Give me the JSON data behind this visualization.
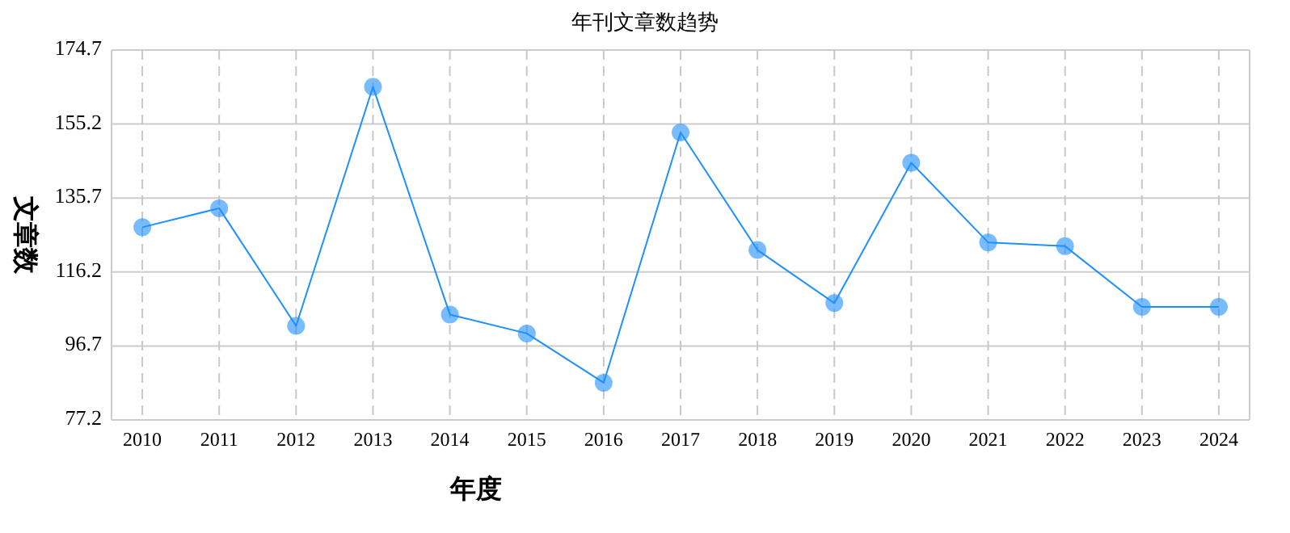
{
  "chart_data": {
    "type": "line",
    "title": "年刊文章数趋势",
    "xlabel": "年度",
    "ylabel": "文章数",
    "categories": [
      "2010",
      "2011",
      "2012",
      "2013",
      "2014",
      "2015",
      "2016",
      "2017",
      "2018",
      "2019",
      "2020",
      "2021",
      "2022",
      "2023",
      "2024"
    ],
    "series": [
      {
        "color": "#1e90ff",
        "values": [
          128,
          133,
          102,
          165,
          105,
          100,
          87,
          153,
          122,
          108,
          145,
          124,
          123,
          107,
          107
        ]
      }
    ],
    "ylim": [
      77.2,
      174.7
    ],
    "yticks": [
      77.2,
      96.7,
      116.2,
      135.7,
      155.2,
      174.7
    ],
    "grid": true,
    "marker": "circle",
    "line_style": "solid"
  }
}
